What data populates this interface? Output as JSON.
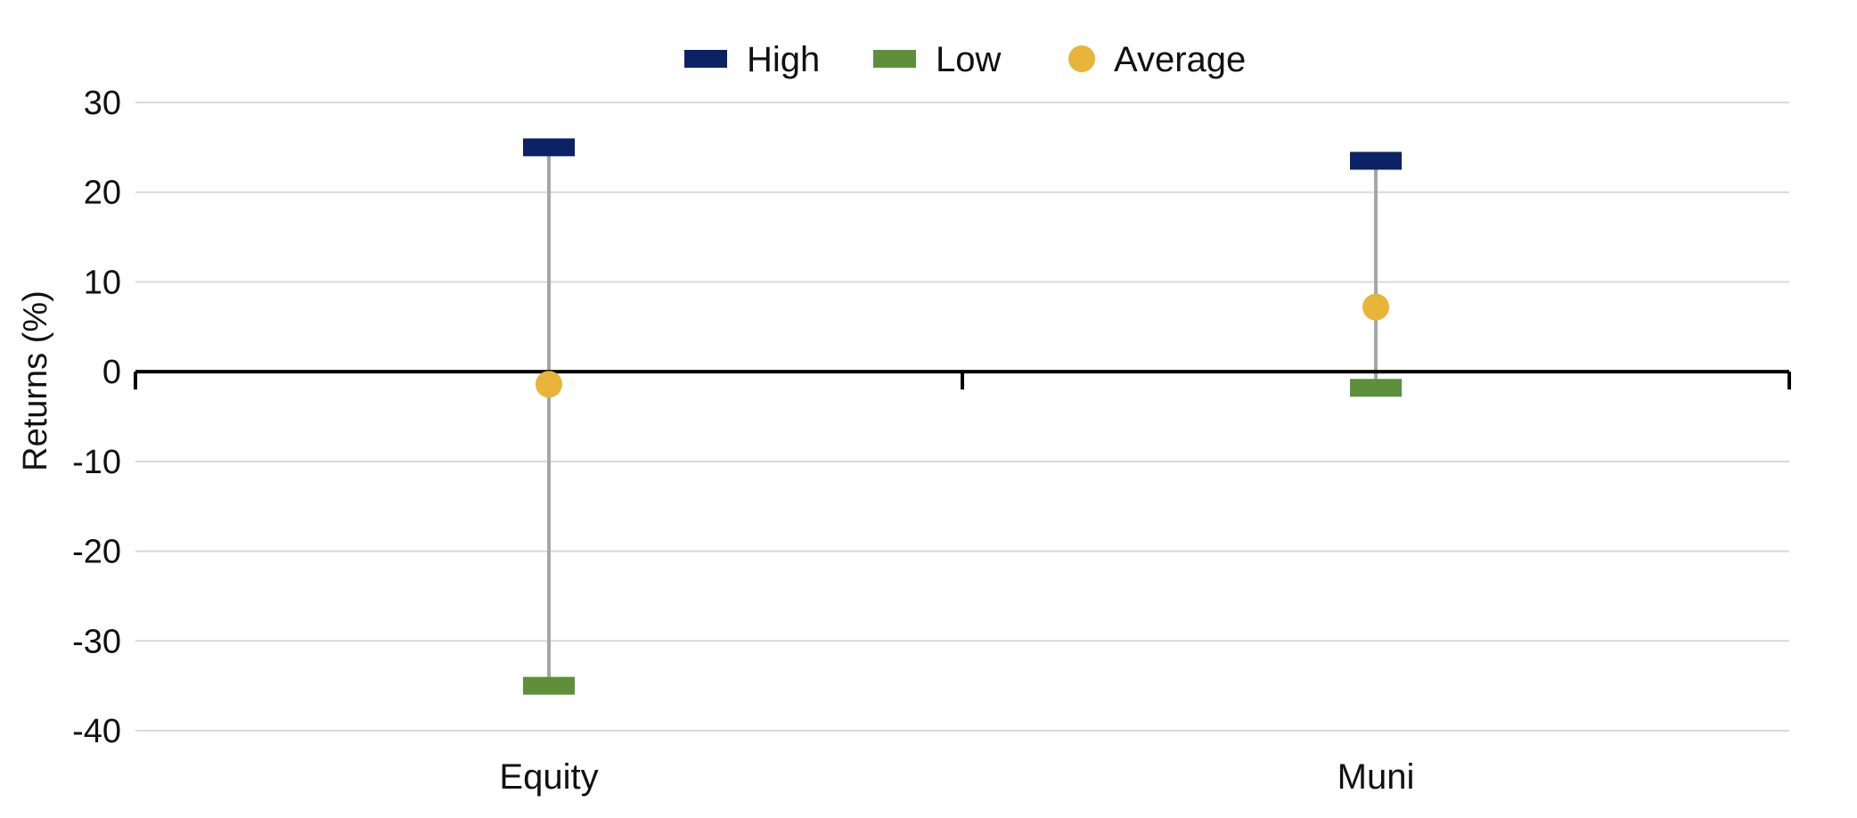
{
  "chart_data": {
    "type": "range",
    "title": "",
    "xlabel": "",
    "ylabel": "Returns (%)",
    "categories": [
      "Equity",
      "Muni"
    ],
    "ylim": [
      -40,
      30
    ],
    "yticks": [
      30,
      20,
      10,
      0,
      -10,
      -20,
      -30,
      -40
    ],
    "grid": true,
    "legend_position": "top-center",
    "series": [
      {
        "name": "High",
        "marker": "bar",
        "color": "#0b2265",
        "values": [
          25.0,
          23.5
        ]
      },
      {
        "name": "Low",
        "marker": "bar",
        "color": "#5e8f3b",
        "values": [
          -35.0,
          -1.8
        ]
      },
      {
        "name": "Average",
        "marker": "circle",
        "color": "#e8b43a",
        "values": [
          -1.4,
          7.2
        ]
      }
    ],
    "connector_color": "#a6a6a6",
    "gridline_color": "#d9d9d9",
    "axis_color": "#000000"
  }
}
